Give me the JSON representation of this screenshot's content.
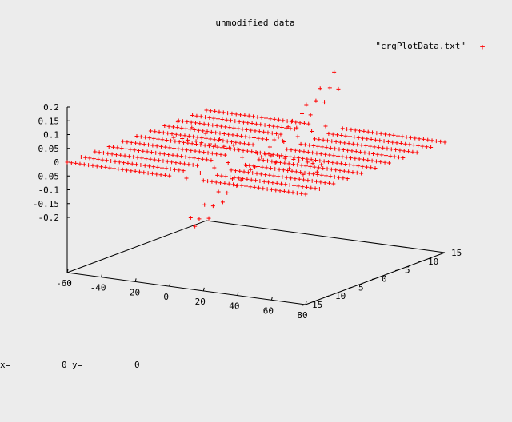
{
  "chart_data": {
    "type": "scatter",
    "title": "unmodified data",
    "legend": {
      "label": "\"crgPlotData.txt\"",
      "marker": "+",
      "position": "top-right"
    },
    "series": [
      {
        "name": "\"crgPlotData.txt\"",
        "color": "#ff0000",
        "marker": "+",
        "surface": "flat plane at z = 0.0 over x in [-60, 80], y in [0, 15], with an S-shaped ramp in z between x = 0 and x = 20 spanning z from -0.17 to 0.2"
      }
    ],
    "zaxis": {
      "ticks": [
        "0.2",
        "0.15",
        "0.1",
        "0.05",
        "0",
        "-0.05",
        "-0.1",
        "-0.15",
        "-0.2"
      ],
      "range": [
        -0.2,
        0.2
      ]
    },
    "xaxis": {
      "ticks": [
        "-60",
        "-40",
        "-20",
        "0",
        "20",
        "40",
        "60",
        "80"
      ],
      "range": [
        -60,
        80
      ]
    },
    "yaxis": {
      "ticks": [
        "15",
        "10",
        "5",
        "0",
        "5",
        "10",
        "15"
      ]
    }
  },
  "status": {
    "x_label": "x=",
    "x_value": "0",
    "y_label": "y=",
    "y_value": "0"
  }
}
